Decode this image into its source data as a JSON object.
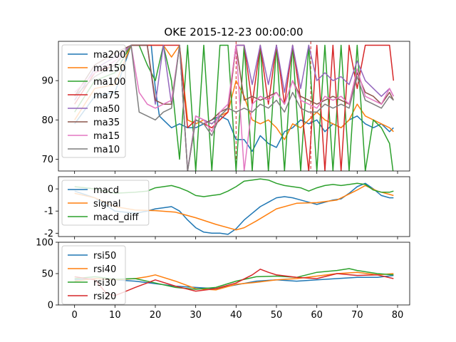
{
  "chart_data": [
    {
      "type": "line",
      "title": "OKE 2015-12-23 00:00:00",
      "xlim": [
        -4,
        83
      ],
      "ylim": [
        67,
        100
      ],
      "yticks": [
        70,
        80,
        90
      ],
      "xticks": [
        0,
        10,
        20,
        30,
        40,
        50,
        60,
        70,
        80
      ],
      "vlines": [
        {
          "x": 40,
          "color": "#d62728",
          "style": "dashed"
        },
        {
          "x": 58.5,
          "color": "#d62728",
          "style": "dashed"
        }
      ],
      "legend": "upper-left",
      "series": [
        {
          "name": "ma200",
          "color": "#1f77b4",
          "x": [
            0,
            5,
            10,
            14,
            16,
            18,
            19,
            20,
            21,
            22,
            24,
            26,
            28,
            30,
            32,
            34,
            36,
            38,
            40,
            42,
            44,
            46,
            48,
            50,
            52,
            54,
            56,
            58,
            60,
            62,
            64,
            66,
            68,
            70,
            72,
            74,
            76,
            78,
            79
          ],
          "values": [
            79,
            86,
            87,
            99,
            99,
            99,
            99,
            88,
            81,
            80,
            78,
            79,
            78,
            78,
            79,
            80,
            81,
            80,
            75,
            75,
            72,
            76,
            74,
            73,
            77,
            78,
            80,
            79,
            80,
            77,
            79,
            78,
            80,
            81,
            79,
            78,
            79,
            77,
            78
          ]
        },
        {
          "name": "ma150",
          "color": "#ff7f0e",
          "x": [
            0,
            5,
            10,
            14,
            16,
            18,
            20,
            22,
            24,
            26,
            28,
            30,
            32,
            34,
            36,
            38,
            40,
            42,
            44,
            46,
            48,
            50,
            52,
            54,
            56,
            58,
            60,
            62,
            64,
            66,
            68,
            70,
            72,
            74,
            76,
            78,
            79
          ],
          "values": [
            80,
            88,
            89,
            99,
            99,
            99,
            99,
            99,
            96,
            99,
            80,
            79,
            80,
            79,
            81,
            82,
            90,
            86,
            80,
            79,
            80,
            78,
            75,
            79,
            78,
            80,
            82,
            80,
            79,
            78,
            80,
            84,
            81,
            80,
            79,
            78,
            77
          ]
        },
        {
          "name": "ma100",
          "color": "#2ca02c",
          "x": [
            0,
            5,
            10,
            14,
            16,
            18,
            20,
            22,
            24,
            26,
            28,
            30,
            32,
            34,
            36,
            38,
            40,
            42,
            44,
            46,
            48,
            50,
            52,
            54,
            56,
            58,
            60,
            62,
            64,
            66,
            68,
            70,
            72,
            74,
            76,
            78,
            79
          ],
          "values": [
            82,
            90,
            92,
            99,
            99,
            94,
            90,
            99,
            90,
            70,
            99,
            67,
            99,
            67,
            99,
            99,
            67,
            99,
            67,
            99,
            67,
            99,
            67,
            99,
            67,
            99,
            67,
            99,
            67,
            99,
            67,
            99,
            67,
            80,
            78,
            74,
            66
          ]
        },
        {
          "name": "ma75",
          "color": "#d62728",
          "x": [
            0,
            5,
            10,
            14,
            16,
            18,
            20,
            22,
            24,
            26,
            28,
            30,
            32,
            34,
            36,
            38,
            40,
            42,
            44,
            46,
            48,
            50,
            52,
            54,
            56,
            58,
            60,
            62,
            64,
            66,
            68,
            70,
            72,
            74,
            76,
            78,
            79
          ],
          "values": [
            84,
            92,
            94,
            99,
            99,
            99,
            99,
            99,
            99,
            99,
            78,
            80,
            79,
            78,
            80,
            82,
            99,
            99,
            84,
            99,
            84,
            99,
            84,
            99,
            85,
            67,
            99,
            67,
            99,
            67,
            99,
            88,
            99,
            99,
            99,
            99,
            90
          ]
        },
        {
          "name": "ma50",
          "color": "#9467bd",
          "x": [
            0,
            5,
            10,
            14,
            16,
            18,
            20,
            22,
            24,
            26,
            28,
            30,
            32,
            34,
            36,
            38,
            40,
            42,
            44,
            46,
            48,
            50,
            52,
            54,
            56,
            58,
            60,
            62,
            64,
            66,
            68,
            70,
            72,
            74,
            76,
            78,
            79
          ],
          "values": [
            85,
            93,
            96,
            99,
            99,
            99,
            84,
            99,
            84,
            99,
            67,
            81,
            80,
            79,
            81,
            83,
            99,
            99,
            89,
            99,
            89,
            99,
            87,
            99,
            88,
            99,
            90,
            92,
            90,
            91,
            89,
            95,
            90,
            88,
            86,
            88,
            86
          ]
        },
        {
          "name": "ma35",
          "color": "#8c564b",
          "x": [
            0,
            5,
            10,
            14,
            16,
            18,
            20,
            22,
            24,
            26,
            28,
            30,
            32,
            34,
            36,
            38,
            40,
            42,
            44,
            46,
            48,
            50,
            52,
            54,
            56,
            58,
            60,
            62,
            64,
            66,
            68,
            70,
            72,
            74,
            76,
            78,
            79
          ],
          "values": [
            86,
            94,
            97,
            99,
            99,
            99,
            85,
            84,
            84,
            99,
            67,
            80,
            79,
            80,
            82,
            83,
            99,
            85,
            86,
            85,
            86,
            87,
            84,
            90,
            86,
            85,
            84,
            85,
            86,
            85,
            84,
            92,
            87,
            86,
            84,
            87,
            85
          ]
        },
        {
          "name": "ma15",
          "color": "#e377c2",
          "x": [
            0,
            5,
            10,
            14,
            16,
            18,
            20,
            22,
            24,
            26,
            28,
            30,
            32,
            34,
            36,
            38,
            40,
            42,
            44,
            46,
            48,
            50,
            52,
            54,
            56,
            58,
            60,
            62,
            64,
            66,
            68,
            70,
            72,
            74,
            76,
            78,
            79
          ],
          "values": [
            87,
            92,
            95,
            99,
            87,
            84,
            83,
            84,
            85,
            99,
            67,
            81,
            80,
            77,
            82,
            84,
            99,
            67,
            84,
            86,
            85,
            87,
            84,
            90,
            85,
            84,
            83,
            86,
            85,
            86,
            84,
            93,
            86,
            85,
            84,
            88,
            86
          ]
        },
        {
          "name": "ma10",
          "color": "#7f7f7f",
          "x": [
            0,
            5,
            10,
            14,
            16,
            18,
            20,
            22,
            24,
            26,
            28,
            30,
            32,
            34,
            36,
            38,
            40,
            42,
            44,
            46,
            48,
            50,
            52,
            54,
            56,
            58,
            60,
            62,
            64,
            66,
            68,
            70,
            72,
            74,
            76,
            78,
            79
          ],
          "values": [
            86,
            91,
            94,
            99,
            82,
            81,
            80,
            82,
            83,
            99,
            67,
            80,
            79,
            76,
            81,
            83,
            82,
            83,
            82,
            84,
            83,
            85,
            82,
            87,
            83,
            82,
            82,
            84,
            83,
            84,
            83,
            91,
            85,
            84,
            83,
            86,
            85
          ]
        }
      ]
    },
    {
      "type": "line",
      "xlim": [
        -4,
        83
      ],
      "ylim": [
        -2.15,
        0.55
      ],
      "yticks": [
        0,
        -1,
        -2
      ],
      "legend": "upper-left",
      "series": [
        {
          "name": "macd",
          "color": "#1f77b4",
          "x": [
            0,
            5,
            10,
            15,
            18,
            20,
            22,
            24,
            26,
            28,
            30,
            32,
            34,
            36,
            38,
            40,
            42,
            44,
            46,
            48,
            50,
            52,
            54,
            56,
            58,
            60,
            62,
            64,
            66,
            68,
            70,
            72,
            74,
            76,
            78,
            79
          ],
          "values": [
            -0.1,
            -0.4,
            -1.0,
            -1.1,
            -1.0,
            -0.9,
            -0.85,
            -0.8,
            -1.0,
            -1.4,
            -1.75,
            -1.95,
            -2.0,
            -2.0,
            -2.05,
            -1.8,
            -1.4,
            -1.1,
            -0.8,
            -0.6,
            -0.4,
            -0.35,
            -0.4,
            -0.5,
            -0.6,
            -0.7,
            -0.6,
            -0.5,
            -0.45,
            -0.2,
            0.1,
            0.25,
            0.0,
            -0.3,
            -0.4,
            -0.4
          ]
        },
        {
          "name": "signal",
          "color": "#ff7f0e",
          "x": [
            0,
            5,
            10,
            15,
            20,
            25,
            30,
            35,
            40,
            42,
            45,
            50,
            55,
            60,
            65,
            70,
            72,
            75,
            79
          ],
          "values": [
            -0.2,
            -0.4,
            -0.8,
            -0.95,
            -0.98,
            -1.05,
            -1.3,
            -1.6,
            -1.85,
            -1.75,
            -1.45,
            -0.9,
            -0.65,
            -0.62,
            -0.5,
            -0.05,
            0.15,
            -0.1,
            -0.3
          ]
        },
        {
          "name": "macd_diff",
          "color": "#2ca02c",
          "x": [
            0,
            5,
            10,
            15,
            18,
            20,
            22,
            24,
            26,
            28,
            30,
            32,
            34,
            36,
            38,
            40,
            42,
            44,
            46,
            48,
            50,
            52,
            54,
            56,
            58,
            60,
            62,
            64,
            66,
            68,
            70,
            72,
            74,
            76,
            78,
            79
          ],
          "values": [
            0.1,
            0.0,
            -0.2,
            -0.15,
            -0.1,
            0.05,
            0.1,
            0.15,
            0.05,
            -0.1,
            -0.3,
            -0.35,
            -0.3,
            -0.25,
            -0.1,
            0.1,
            0.35,
            0.4,
            0.45,
            0.4,
            0.25,
            0.15,
            0.1,
            0.05,
            -0.1,
            0.05,
            0.15,
            0.2,
            0.15,
            0.2,
            0.25,
            0.2,
            -0.05,
            -0.15,
            -0.15,
            -0.1
          ]
        }
      ]
    },
    {
      "type": "line",
      "xlim": [
        -4,
        83
      ],
      "ylim": [
        0,
        100
      ],
      "yticks": [
        0,
        50,
        100
      ],
      "xticks": [
        0,
        10,
        20,
        30,
        40,
        50,
        60,
        70,
        80
      ],
      "legend": "upper-left",
      "series": [
        {
          "name": "rsi50",
          "color": "#1f77b4",
          "x": [
            0,
            5,
            10,
            15,
            20,
            25,
            30,
            35,
            40,
            45,
            50,
            55,
            60,
            65,
            70,
            75,
            79
          ],
          "values": [
            40,
            42,
            40,
            38,
            34,
            30,
            28,
            26,
            32,
            38,
            40,
            38,
            40,
            42,
            44,
            44,
            47
          ]
        },
        {
          "name": "rsi40",
          "color": "#ff7f0e",
          "x": [
            0,
            5,
            10,
            15,
            18,
            20,
            25,
            30,
            35,
            40,
            45,
            50,
            55,
            60,
            65,
            70,
            75,
            79
          ],
          "values": [
            38,
            42,
            40,
            42,
            45,
            48,
            38,
            26,
            24,
            33,
            36,
            40,
            42,
            46,
            50,
            52,
            48,
            50
          ]
        },
        {
          "name": "rsi30",
          "color": "#2ca02c",
          "x": [
            0,
            5,
            10,
            15,
            20,
            25,
            30,
            35,
            40,
            45,
            50,
            55,
            60,
            65,
            68,
            70,
            75,
            79
          ],
          "values": [
            42,
            45,
            41,
            42,
            35,
            28,
            25,
            28,
            38,
            45,
            46,
            44,
            52,
            55,
            58,
            55,
            50,
            48
          ]
        },
        {
          "name": "rsi20",
          "color": "#d62728",
          "x": [
            0,
            5,
            8,
            10,
            12,
            15,
            20,
            25,
            30,
            35,
            40,
            44,
            46,
            48,
            50,
            55,
            60,
            65,
            70,
            75,
            79
          ],
          "values": [
            45,
            40,
            18,
            15,
            20,
            28,
            40,
            30,
            22,
            26,
            35,
            48,
            57,
            52,
            48,
            44,
            42,
            50,
            47,
            48,
            42
          ]
        }
      ]
    }
  ]
}
